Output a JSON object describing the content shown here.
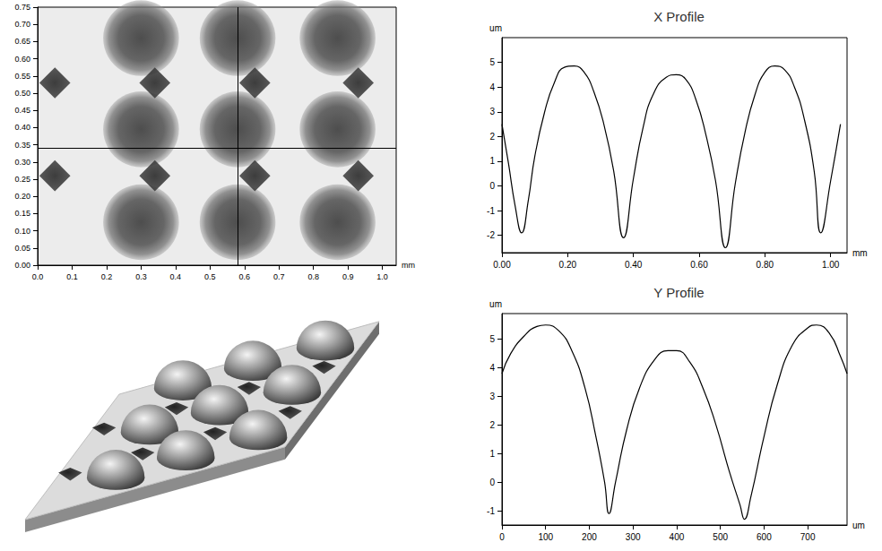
{
  "chart_data": [
    {
      "type": "scatter",
      "xlabel": "mm",
      "xlim": [
        0,
        1.04
      ],
      "xticks": [
        {
          "value": 0,
          "label": "0.0"
        },
        0.1,
        0.2,
        0.3,
        0.4,
        0.5,
        0.6,
        0.7,
        0.8,
        0.9,
        {
          "value": 1,
          "label": "1.0"
        }
      ],
      "ylim": [
        0,
        0.75
      ],
      "yticks": [
        {
          "value": 0,
          "label": "0.00"
        },
        0.05,
        {
          "value": 0.1,
          "label": "0.10"
        },
        0.15,
        {
          "value": 0.2,
          "label": "0.20"
        },
        0.25,
        {
          "value": 0.3,
          "label": "0.30"
        },
        0.35,
        {
          "value": 0.4,
          "label": "0.40"
        },
        0.45,
        {
          "value": 0.5,
          "label": "0.50"
        },
        0.55,
        {
          "value": 0.6,
          "label": "0.60"
        },
        0.65,
        {
          "value": 0.7,
          "label": "0.70"
        },
        0.75
      ],
      "series": [
        {
          "marker": "circle",
          "diameter": 0.22,
          "x": [
            0.3,
            0.58,
            0.87,
            0.3,
            0.58,
            0.87,
            0.3,
            0.58,
            0.87
          ],
          "y": [
            0.66,
            0.66,
            0.66,
            0.395,
            0.395,
            0.395,
            0.125,
            0.125,
            0.125
          ]
        },
        {
          "marker": "diamond",
          "diameter": 0.09,
          "x": [
            0.05,
            0.34,
            0.63,
            0.93,
            0.05,
            0.34,
            0.63,
            0.93
          ],
          "y": [
            0.53,
            0.53,
            0.53,
            0.53,
            0.26,
            0.26,
            0.26,
            0.26
          ]
        }
      ],
      "crosshair": {
        "x": 0.58,
        "y": 0.34
      }
    },
    {
      "type": "line",
      "title": "X Profile",
      "xlabel": "mm",
      "ylabel": "um",
      "color": "#000000",
      "x": [
        0.0,
        0.02,
        0.04,
        0.06,
        0.08,
        0.1,
        0.13,
        0.16,
        0.19,
        0.22,
        0.25,
        0.28,
        0.31,
        0.34,
        0.37,
        0.4,
        0.43,
        0.46,
        0.5,
        0.53,
        0.56,
        0.59,
        0.62,
        0.65,
        0.68,
        0.71,
        0.74,
        0.77,
        0.8,
        0.83,
        0.86,
        0.89,
        0.92,
        0.95,
        0.97,
        1.0,
        1.03
      ],
      "values": [
        2.5,
        0.9,
        -0.8,
        -1.9,
        -0.6,
        1.2,
        3.0,
        4.2,
        4.8,
        4.85,
        4.6,
        3.8,
        2.5,
        0.6,
        -2.1,
        0.3,
        2.4,
        3.7,
        4.4,
        4.5,
        4.3,
        3.5,
        2.1,
        0.2,
        -2.5,
        0.1,
        2.2,
        3.7,
        4.6,
        4.85,
        4.7,
        4.0,
        2.7,
        0.6,
        -1.9,
        0.2,
        2.5
      ],
      "xlim": [
        0,
        1.05
      ],
      "xticks": [
        {
          "value": 0,
          "label": "0.00"
        },
        {
          "value": 0.2,
          "label": "0.20"
        },
        {
          "value": 0.4,
          "label": "0.40"
        },
        {
          "value": 0.6,
          "label": "0.60"
        },
        {
          "value": 0.8,
          "label": "0.80"
        },
        {
          "value": 1,
          "label": "1.00"
        }
      ],
      "ylim": [
        -2.7,
        6
      ],
      "yticks": [
        -2,
        -1,
        0,
        1,
        2,
        3,
        4,
        5
      ]
    },
    {
      "type": "line",
      "title": "Y Profile",
      "xlabel": "um",
      "ylabel": "um",
      "color": "#000000",
      "x": [
        0,
        20,
        50,
        80,
        100,
        130,
        160,
        190,
        215,
        235,
        245,
        260,
        285,
        315,
        350,
        380,
        400,
        430,
        460,
        490,
        520,
        545,
        555,
        570,
        600,
        630,
        665,
        700,
        720,
        750,
        775,
        790
      ],
      "values": [
        3.8,
        4.5,
        5.1,
        5.45,
        5.5,
        5.3,
        4.6,
        3.3,
        1.6,
        0.0,
        -1.1,
        0.0,
        1.8,
        3.3,
        4.3,
        4.6,
        4.6,
        4.2,
        3.3,
        2.0,
        0.4,
        -0.8,
        -1.3,
        -0.5,
        1.6,
        3.4,
        4.8,
        5.4,
        5.5,
        5.2,
        4.4,
        3.8
      ],
      "xlim": [
        0,
        790
      ],
      "xticks": [
        0,
        100,
        200,
        300,
        400,
        500,
        600,
        700
      ],
      "ylim": [
        -1.5,
        5.9
      ],
      "yticks": [
        -1,
        0,
        1,
        2,
        3,
        4,
        5
      ]
    }
  ]
}
